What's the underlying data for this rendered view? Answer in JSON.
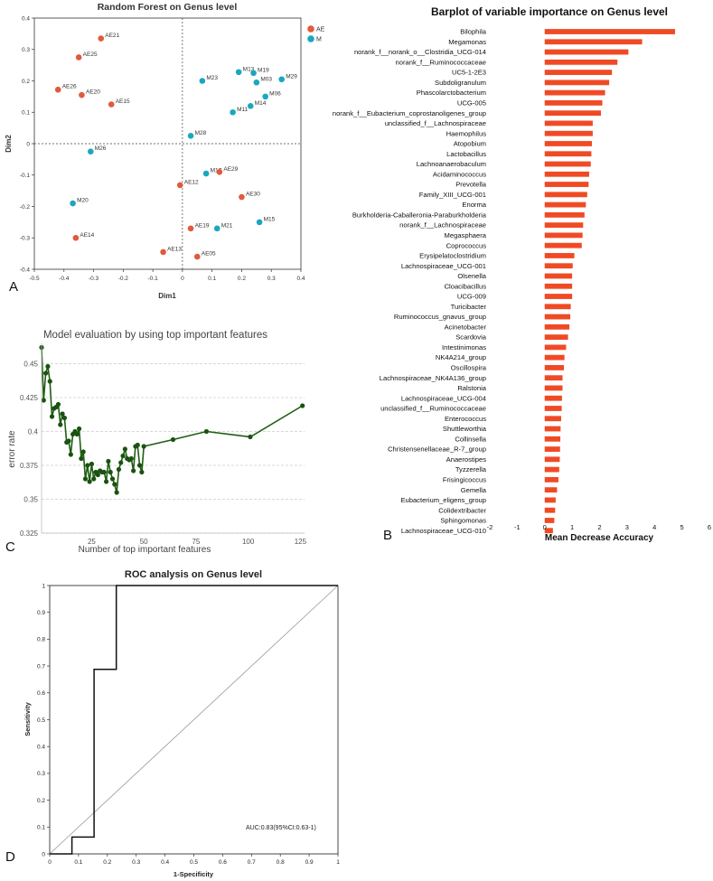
{
  "panel_labels": {
    "a": "A",
    "b": "B",
    "c": "C",
    "d": "D"
  },
  "colors": {
    "ae": "#e05a3c",
    "m": "#1aa7bf",
    "bar": "#f04a25",
    "line": "#1f5e12",
    "marker": "#1b5210",
    "grid": "#cccccc",
    "axis": "#333333"
  },
  "chart_data": [
    {
      "id": "A",
      "type": "scatter",
      "title": "Random Forest on Genus level",
      "xlabel": "Dim1",
      "ylabel": "Dim2",
      "xlim": [
        -0.5,
        0.4
      ],
      "ylim": [
        -0.4,
        0.4
      ],
      "xticks": [
        -0.5,
        -0.4,
        -0.3,
        -0.2,
        -0.1,
        0,
        0.1,
        0.2,
        0.3,
        0.4
      ],
      "yticks": [
        -0.4,
        -0.3,
        -0.2,
        -0.1,
        0,
        0.1,
        0.2,
        0.3,
        0.4
      ],
      "legend": {
        "position": "top-right",
        "entries": [
          {
            "label": "AE",
            "group": "AE"
          },
          {
            "label": "M",
            "group": "M"
          }
        ]
      },
      "points": [
        {
          "label": "AE21",
          "x": -0.275,
          "y": 0.335,
          "group": "AE"
        },
        {
          "label": "AE25",
          "x": -0.35,
          "y": 0.275,
          "group": "AE"
        },
        {
          "label": "AE26",
          "x": -0.42,
          "y": 0.172,
          "group": "AE"
        },
        {
          "label": "AE20",
          "x": -0.34,
          "y": 0.155,
          "group": "AE"
        },
        {
          "label": "AE15",
          "x": -0.24,
          "y": 0.125,
          "group": "AE"
        },
        {
          "label": "M23",
          "x": 0.067,
          "y": 0.2,
          "group": "M"
        },
        {
          "label": "M13",
          "x": 0.19,
          "y": 0.228,
          "group": "M"
        },
        {
          "label": "M19",
          "x": 0.24,
          "y": 0.225,
          "group": "M"
        },
        {
          "label": "M03",
          "x": 0.25,
          "y": 0.195,
          "group": "M"
        },
        {
          "label": "M29",
          "x": 0.335,
          "y": 0.205,
          "group": "M"
        },
        {
          "label": "M14",
          "x": 0.23,
          "y": 0.12,
          "group": "M"
        },
        {
          "label": "M06",
          "x": 0.28,
          "y": 0.15,
          "group": "M"
        },
        {
          "label": "M11",
          "x": 0.17,
          "y": 0.1,
          "group": "M"
        },
        {
          "label": "M28",
          "x": 0.028,
          "y": 0.025,
          "group": "M"
        },
        {
          "label": "M26",
          "x": -0.31,
          "y": -0.025,
          "group": "M"
        },
        {
          "label": "M17",
          "x": 0.08,
          "y": -0.095,
          "group": "M"
        },
        {
          "label": "AE29",
          "x": 0.125,
          "y": -0.09,
          "group": "AE"
        },
        {
          "label": "AE12",
          "x": -0.008,
          "y": -0.132,
          "group": "AE"
        },
        {
          "label": "AE30",
          "x": 0.2,
          "y": -0.17,
          "group": "AE"
        },
        {
          "label": "M20",
          "x": -0.37,
          "y": -0.19,
          "group": "M"
        },
        {
          "label": "M15",
          "x": 0.26,
          "y": -0.25,
          "group": "M"
        },
        {
          "label": "AE19",
          "x": 0.028,
          "y": -0.27,
          "group": "AE"
        },
        {
          "label": "M21",
          "x": 0.117,
          "y": -0.27,
          "group": "M"
        },
        {
          "label": "AE14",
          "x": -0.36,
          "y": -0.3,
          "group": "AE"
        },
        {
          "label": "AE13",
          "x": -0.065,
          "y": -0.345,
          "group": "AE"
        },
        {
          "label": "AE05",
          "x": 0.05,
          "y": -0.36,
          "group": "AE"
        }
      ]
    },
    {
      "id": "B",
      "type": "bar",
      "orientation": "horizontal",
      "title": "Barplot of variable importance on Genus level",
      "xlabel": "Mean Decrease Accuracy",
      "xlim": [
        -2,
        6
      ],
      "xticks": [
        -2,
        -1,
        0,
        1,
        2,
        3,
        4,
        5,
        6
      ],
      "categories": [
        "Bilophila",
        "Megamonas",
        "norank_f__norank_o__Clostridia_UCG-014",
        "norank_f__Ruminococcaceae",
        "UC5-1-2E3",
        "Subdoligranulum",
        "Phascolarctobacterium",
        "UCG-005",
        "norank_f__Eubacterium_coprostanoligenes_group",
        "unclassified_f__Lachnospiraceae",
        "Haemophilus",
        "Atopobium",
        "Lactobacillus",
        "Lachnoanaerobaculum",
        "Acidaminococcus",
        "Prevotella",
        "Family_XIII_UCG-001",
        "Enorma",
        "Burkholderia-Caballeronia-Paraburkholderia",
        "norank_f__Lachnospiraceae",
        "Megasphaera",
        "Coprococcus",
        "Erysipelatoclostridium",
        "Lachnospiraceae_UCG-001",
        "Olsenella",
        "Cloacibacillus",
        "UCG-009",
        "Turicibacter",
        "Ruminococcus_gnavus_group",
        "Acinetobacter",
        "Scardovia",
        "Intestinimonas",
        "NK4A214_group",
        "Oscillospira",
        "Lachnospiraceae_NK4A136_group",
        "Ralstonia",
        "Lachnospiraceae_UCG-004",
        "unclassified_f__Ruminococcaceae",
        "Enterococcus",
        "Shuttleworthia",
        "Collinsella",
        "Christensenellaceae_R-7_group",
        "Anaerostipes",
        "Tyzzerella",
        "Frisingicoccus",
        "Gemella",
        "Eubacterium_eligens_group",
        "Colidextribacter",
        "Sphingomonas",
        "Lachnospiraceae_UCG-010"
      ],
      "values": [
        4.75,
        3.55,
        3.05,
        2.65,
        2.45,
        2.35,
        2.2,
        2.1,
        2.05,
        1.75,
        1.75,
        1.72,
        1.7,
        1.68,
        1.62,
        1.6,
        1.55,
        1.5,
        1.45,
        1.4,
        1.38,
        1.35,
        1.08,
        1.02,
        1.0,
        1.0,
        1.0,
        0.95,
        0.93,
        0.9,
        0.85,
        0.78,
        0.72,
        0.7,
        0.65,
        0.65,
        0.63,
        0.62,
        0.6,
        0.58,
        0.57,
        0.56,
        0.55,
        0.53,
        0.5,
        0.45,
        0.4,
        0.38,
        0.35,
        0.3
      ]
    },
    {
      "id": "C",
      "type": "line",
      "title": "Model evaluation by using top important features",
      "xlabel": "Number of top important features",
      "ylabel": "error rate",
      "xlim": [
        1,
        127
      ],
      "ylim": [
        0.325,
        0.465
      ],
      "xticks": [
        25,
        50,
        75,
        100,
        125
      ],
      "yticks": [
        0.325,
        0.35,
        0.375,
        0.4,
        0.425,
        0.45
      ],
      "x": [
        1,
        2,
        3,
        4,
        5,
        6,
        7,
        8,
        9,
        10,
        11,
        12,
        13,
        14,
        15,
        16,
        17,
        18,
        19,
        20,
        21,
        22,
        23,
        24,
        25,
        26,
        27,
        28,
        29,
        30,
        31,
        32,
        33,
        34,
        35,
        36,
        37,
        38,
        39,
        40,
        41,
        42,
        43,
        44,
        45,
        46,
        47,
        48,
        49,
        50,
        64,
        80,
        101,
        126
      ],
      "y": [
        0.462,
        0.423,
        0.443,
        0.448,
        0.437,
        0.411,
        0.417,
        0.418,
        0.42,
        0.405,
        0.413,
        0.41,
        0.392,
        0.393,
        0.383,
        0.398,
        0.4,
        0.398,
        0.402,
        0.38,
        0.385,
        0.365,
        0.375,
        0.363,
        0.376,
        0.365,
        0.37,
        0.368,
        0.371,
        0.37,
        0.37,
        0.363,
        0.378,
        0.37,
        0.365,
        0.361,
        0.355,
        0.372,
        0.377,
        0.382,
        0.387,
        0.38,
        0.379,
        0.38,
        0.371,
        0.389,
        0.39,
        0.375,
        0.37,
        0.389,
        0.394,
        0.4,
        0.396,
        0.419
      ]
    },
    {
      "id": "D",
      "type": "line",
      "subtype": "roc",
      "title": "ROC analysis on Genus level",
      "xlabel": "1-Specificity",
      "ylabel": "Sensitivity",
      "xlim": [
        0,
        1
      ],
      "ylim": [
        0,
        1
      ],
      "xticks": [
        0,
        0.1,
        0.2,
        0.3,
        0.4,
        0.5,
        0.6,
        0.7,
        0.8,
        0.9,
        1
      ],
      "yticks": [
        0,
        0.1,
        0.2,
        0.3,
        0.4,
        0.5,
        0.6,
        0.7,
        0.8,
        0.9,
        1
      ],
      "x": [
        0,
        0.077,
        0.077,
        0.154,
        0.154,
        0.231,
        0.231,
        1
      ],
      "y": [
        0,
        0,
        0.0625,
        0.0625,
        0.6875,
        0.6875,
        1,
        1
      ],
      "annotation": "AUC:0.83(95%CI:0.63-1)"
    }
  ]
}
